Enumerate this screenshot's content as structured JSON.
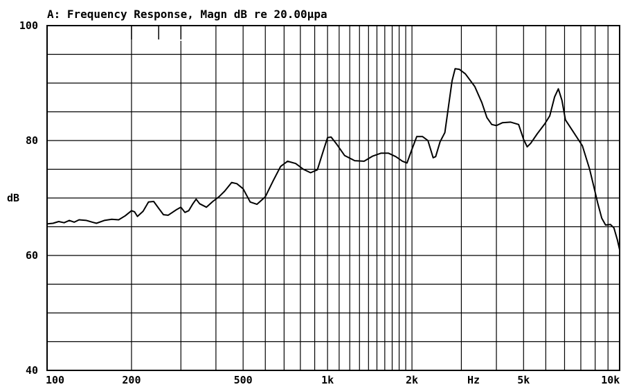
{
  "chart_data": {
    "type": "line",
    "title": "A: Frequency Response, Magn dB re 20.00µpa",
    "ylabel": "dB",
    "xlabel": "Hz",
    "x_scale": "log",
    "xlim": [
      100,
      11000
    ],
    "ylim": [
      40,
      100
    ],
    "y_ticks": [
      {
        "value": 100,
        "label": "100"
      },
      {
        "value": 80,
        "label": "80"
      },
      {
        "value": 60,
        "label": "60"
      },
      {
        "value": 40,
        "label": "40"
      }
    ],
    "x_ticks": [
      {
        "value": 100,
        "label": "100"
      },
      {
        "value": 200,
        "label": "200"
      },
      {
        "value": 500,
        "label": "500"
      },
      {
        "value": 1000,
        "label": "1k"
      },
      {
        "value": 2000,
        "label": "2k"
      },
      {
        "value": 5000,
        "label": "5k"
      },
      {
        "value": 10000,
        "label": "10k"
      }
    ],
    "grid": true,
    "series": [
      {
        "color": "#000000",
        "points": [
          [
            100,
            65.5
          ],
          [
            105,
            65.6
          ],
          [
            110,
            65.9
          ],
          [
            115,
            65.7
          ],
          [
            120,
            66.1
          ],
          [
            125,
            65.8
          ],
          [
            130,
            66.2
          ],
          [
            138,
            66.1
          ],
          [
            145,
            65.8
          ],
          [
            150,
            65.6
          ],
          [
            160,
            66.1
          ],
          [
            170,
            66.3
          ],
          [
            180,
            66.2
          ],
          [
            190,
            66.9
          ],
          [
            200,
            67.8
          ],
          [
            205,
            67.6
          ],
          [
            210,
            66.8
          ],
          [
            220,
            67.7
          ],
          [
            230,
            69.3
          ],
          [
            240,
            69.4
          ],
          [
            250,
            68.2
          ],
          [
            260,
            67.1
          ],
          [
            270,
            67.0
          ],
          [
            290,
            68.0
          ],
          [
            300,
            68.4
          ],
          [
            310,
            67.5
          ],
          [
            320,
            67.8
          ],
          [
            330,
            68.9
          ],
          [
            340,
            69.8
          ],
          [
            350,
            69.0
          ],
          [
            370,
            68.4
          ],
          [
            390,
            69.4
          ],
          [
            410,
            70.2
          ],
          [
            430,
            71.2
          ],
          [
            455,
            72.7
          ],
          [
            475,
            72.5
          ],
          [
            500,
            71.6
          ],
          [
            530,
            69.3
          ],
          [
            560,
            68.9
          ],
          [
            600,
            70.2
          ],
          [
            640,
            73.0
          ],
          [
            680,
            75.5
          ],
          [
            720,
            76.4
          ],
          [
            770,
            76.0
          ],
          [
            820,
            75.0
          ],
          [
            870,
            74.4
          ],
          [
            920,
            74.9
          ],
          [
            970,
            78.5
          ],
          [
            1000,
            80.5
          ],
          [
            1030,
            80.6
          ],
          [
            1080,
            79.3
          ],
          [
            1150,
            77.4
          ],
          [
            1250,
            76.5
          ],
          [
            1350,
            76.4
          ],
          [
            1450,
            77.3
          ],
          [
            1550,
            77.8
          ],
          [
            1650,
            77.8
          ],
          [
            1750,
            77.2
          ],
          [
            1850,
            76.4
          ],
          [
            1920,
            76.1
          ],
          [
            2000,
            78.5
          ],
          [
            2080,
            80.7
          ],
          [
            2180,
            80.7
          ],
          [
            2280,
            80.0
          ],
          [
            2380,
            77.0
          ],
          [
            2430,
            77.2
          ],
          [
            2520,
            79.8
          ],
          [
            2620,
            81.4
          ],
          [
            2700,
            86.0
          ],
          [
            2780,
            90.4
          ],
          [
            2850,
            92.5
          ],
          [
            2950,
            92.4
          ],
          [
            3100,
            91.6
          ],
          [
            3350,
            89.4
          ],
          [
            3550,
            86.6
          ],
          [
            3700,
            84.0
          ],
          [
            3850,
            82.8
          ],
          [
            4000,
            82.6
          ],
          [
            4200,
            83.1
          ],
          [
            4500,
            83.2
          ],
          [
            4800,
            82.8
          ],
          [
            5000,
            80.2
          ],
          [
            5150,
            78.9
          ],
          [
            5300,
            79.5
          ],
          [
            5600,
            81.2
          ],
          [
            5950,
            82.9
          ],
          [
            6200,
            84.3
          ],
          [
            6450,
            87.6
          ],
          [
            6650,
            89.0
          ],
          [
            6850,
            87.0
          ],
          [
            7050,
            83.6
          ],
          [
            7500,
            81.6
          ],
          [
            8100,
            79.1
          ],
          [
            8600,
            75.0
          ],
          [
            8900,
            72.0
          ],
          [
            9200,
            69.0
          ],
          [
            9500,
            66.5
          ],
          [
            9800,
            65.3
          ],
          [
            10200,
            65.4
          ],
          [
            10500,
            64.8
          ],
          [
            10800,
            62.7
          ],
          [
            11000,
            61.0
          ]
        ]
      }
    ]
  }
}
